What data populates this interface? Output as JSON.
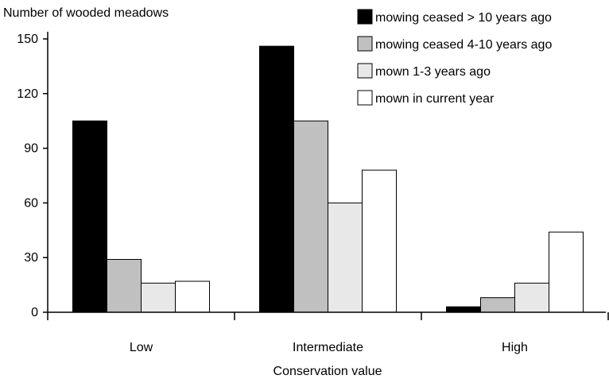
{
  "chart_data": {
    "type": "bar",
    "title": "",
    "ylabel": "Number of wooded meadows",
    "xlabel": "Conservation value",
    "categories": [
      "Low",
      "Intermediate",
      "High"
    ],
    "ylim": [
      0,
      150
    ],
    "yticks": [
      0,
      30,
      60,
      90,
      120,
      150
    ],
    "grid": false,
    "legend_position": "top-right",
    "series": [
      {
        "name": "mowing ceased > 10 years ago",
        "color": "#000000",
        "values": [
          105,
          146,
          3
        ]
      },
      {
        "name": "mowing ceased 4-10 years ago",
        "color": "#c0c0c0",
        "values": [
          29,
          105,
          8
        ]
      },
      {
        "name": "mown 1-3 years ago",
        "color": "#e8e8e8",
        "values": [
          16,
          60,
          16
        ]
      },
      {
        "name": "mown in current year",
        "color": "#ffffff",
        "values": [
          17,
          78,
          44
        ]
      }
    ]
  }
}
